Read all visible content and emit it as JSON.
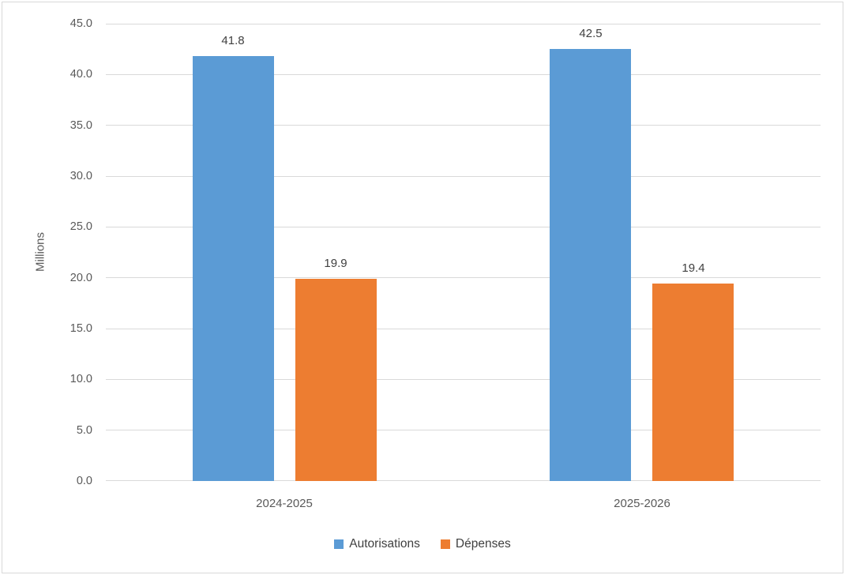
{
  "chart_data": {
    "type": "bar",
    "title": "",
    "categories": [
      "2024-2025",
      "2025-2026"
    ],
    "series": [
      {
        "name": "Autorisations",
        "values": [
          41.8,
          42.5
        ],
        "data_labels": [
          "41.8",
          "42.5"
        ],
        "color": "#5B9BD5"
      },
      {
        "name": "Dépenses",
        "values": [
          19.9,
          19.4
        ],
        "data_labels": [
          "19.9",
          "19.4"
        ],
        "color": "#ED7D31"
      }
    ],
    "xlabel": "",
    "ylabel": "Millions",
    "ylim": [
      0,
      45
    ],
    "ytick_step": 5,
    "ytick_labels": [
      "0.0",
      "5.0",
      "10.0",
      "15.0",
      "20.0",
      "25.0",
      "30.0",
      "35.0",
      "40.0",
      "45.0"
    ],
    "grid": true,
    "legend_position": "bottom-center"
  },
  "colors": {
    "series_autorisations": "#5B9BD5",
    "series_depenses": "#ED7D31",
    "gridline": "#D9D9D9",
    "frame_border": "#D9D9D9",
    "axis_text": "#595959",
    "data_label_text": "#404040",
    "background": "#FFFFFF"
  }
}
